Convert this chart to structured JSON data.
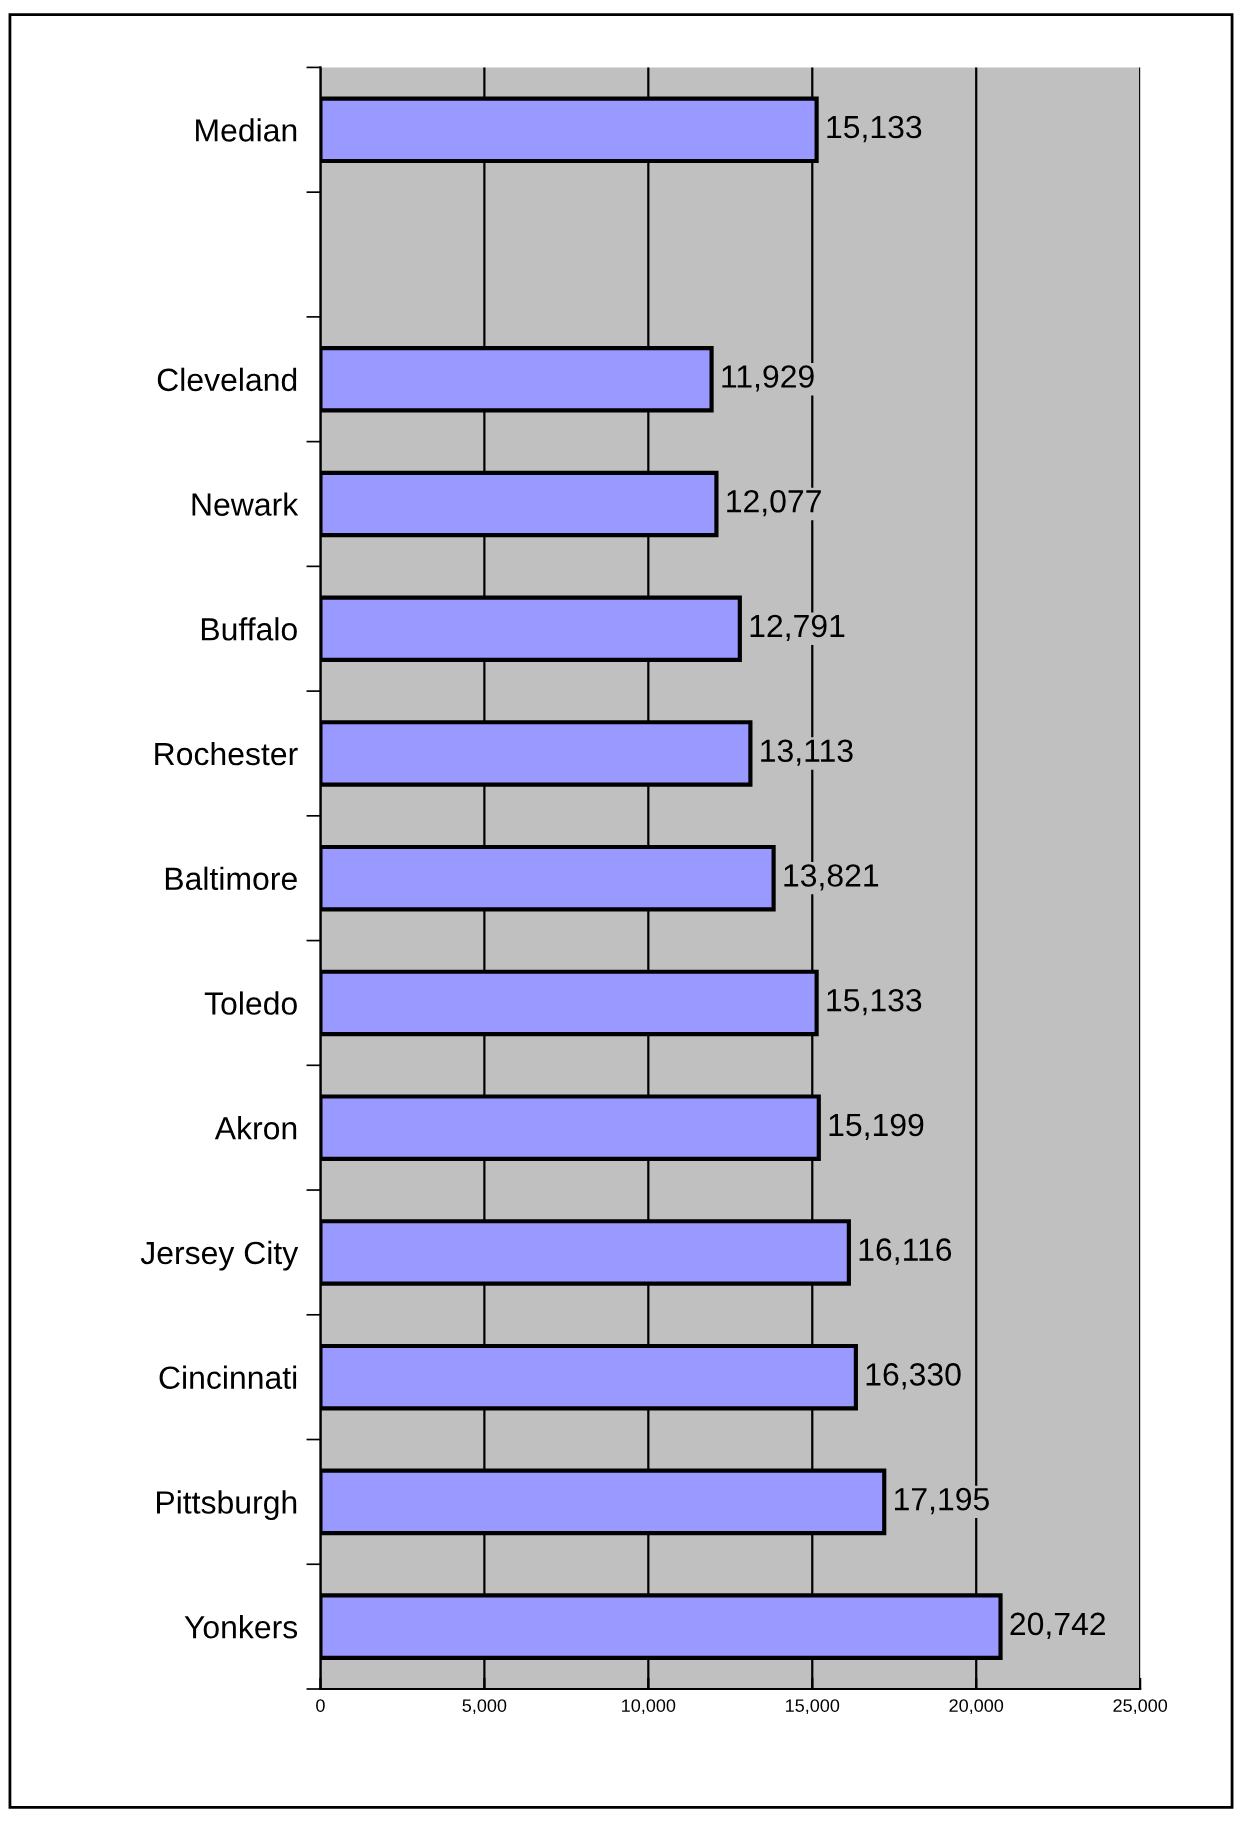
{
  "chart_data": {
    "type": "bar",
    "orientation": "horizontal",
    "categories": [
      "Median",
      null,
      "Cleveland",
      "Newark",
      "Buffalo",
      "Rochester",
      "Baltimore",
      "Toledo",
      "Akron",
      "Jersey City",
      "Cincinnati",
      "Pittsburgh",
      "Yonkers"
    ],
    "values": [
      15133,
      null,
      11929,
      12077,
      12791,
      13113,
      13821,
      15133,
      15199,
      16116,
      16330,
      17195,
      20742
    ],
    "value_labels": [
      "15,133",
      null,
      "11,929",
      "12,077",
      "12,791",
      "13,113",
      "13,821",
      "15,133",
      "15,199",
      "16,116",
      "16,330",
      "17,195",
      "20,742"
    ],
    "color": "#9999ff",
    "xlim": [
      0,
      25000
    ],
    "xticks": [
      0,
      {
        "value": 5000,
        "label": "5,000"
      },
      {
        "value": 10000,
        "label": "10,000"
      },
      {
        "value": 15000,
        "label": "15,000"
      },
      {
        "value": 20000,
        "label": "20,000"
      },
      {
        "value": 25000,
        "label": "25,000"
      }
    ],
    "grid": "x",
    "legend": false
  }
}
